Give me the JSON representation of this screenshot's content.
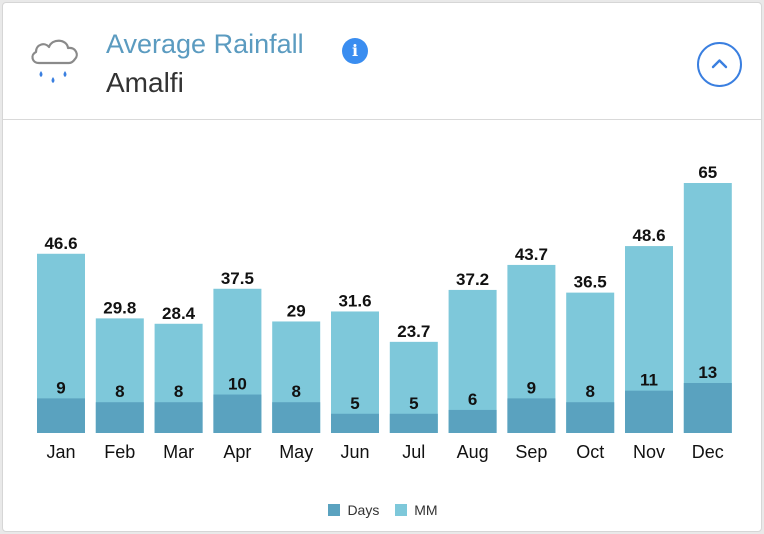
{
  "header": {
    "title": "Average Rainfall",
    "subtitle": "Amalfi",
    "info_glyph": "i",
    "icons": [
      "rain-cloud-icon",
      "info-icon",
      "chevron-up-icon"
    ]
  },
  "colors": {
    "days": "#5aa2bf",
    "mm": "#7ec8da",
    "title": "#5b9bc0",
    "accent": "#3a7fe0"
  },
  "chart_data": {
    "type": "bar",
    "title": "Average Rainfall",
    "subtitle": "Amalfi",
    "categories": [
      "Jan",
      "Feb",
      "Mar",
      "Apr",
      "May",
      "Jun",
      "Jul",
      "Aug",
      "Sep",
      "Oct",
      "Nov",
      "Dec"
    ],
    "series": [
      {
        "name": "Days",
        "values": [
          9,
          8,
          8,
          10,
          8,
          5,
          5,
          6,
          9,
          8,
          11,
          13
        ]
      },
      {
        "name": "MM",
        "values": [
          46.6,
          29.8,
          28.4,
          37.5,
          29,
          31.6,
          23.7,
          37.2,
          43.7,
          36.5,
          48.6,
          65
        ]
      }
    ],
    "overlap": true,
    "xlabel": "",
    "ylabel": "",
    "ylim": [
      0,
      65
    ],
    "grid": false,
    "legend": "bottom-center"
  }
}
